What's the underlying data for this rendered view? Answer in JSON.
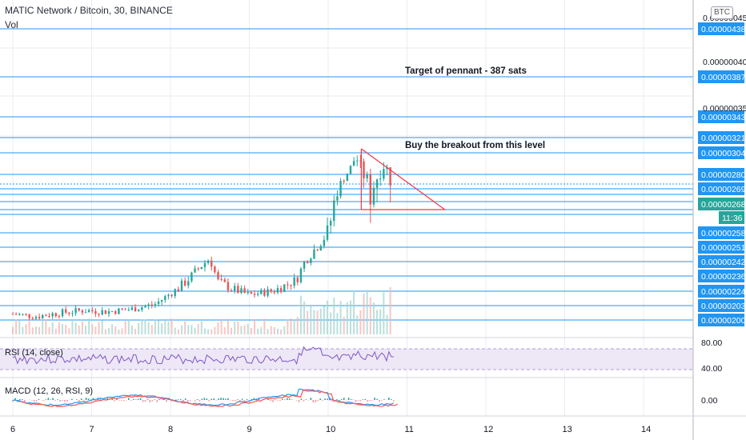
{
  "header": {
    "symbol_title": "MATIC Network / Bitcoin, 30, BINANCE",
    "volume_label": "Vol",
    "currency_badge": "BTC"
  },
  "colors": {
    "up": "#26a69a",
    "down": "#ef5350",
    "hline": "#2196f3",
    "pennant": "#f23645",
    "rsi_line": "#7e57c2",
    "rsi_band": "#ede7f6",
    "macd_line": "#2196f3",
    "signal_line": "#ff5252",
    "grid": "#e9ecf2"
  },
  "annotations": [
    {
      "text": "Target of pennant - 387 sats",
      "price": 3.87e-06
    },
    {
      "text": "Buy the breakout from this level",
      "price": 3.04e-06
    }
  ],
  "timer_label": "11:36",
  "chart_data": {
    "type": "candlestick",
    "title": "MATIC Network / Bitcoin, 30, BINANCE",
    "x_ticks": [
      "6",
      "7",
      "8",
      "9",
      "10",
      "11",
      "12",
      "13",
      "14"
    ],
    "price_axis_ticks": [
      "0.000000450",
      "0.000000400",
      "0.000000350"
    ],
    "horizontal_levels": [
      "0.00000438",
      "0.00000387",
      "0.00000343",
      "0.00000321",
      "0.00000304",
      "0.00000280",
      "0.00000269",
      "0.00000258",
      "0.00000251",
      "0.00000242",
      "0.00000236",
      "0.00000224",
      "0.00000203",
      "0.00000200"
    ],
    "current_price": "0.00000268",
    "series_close_path": [
      [
        6.0,
        205
      ],
      [
        6.3,
        203
      ],
      [
        6.6,
        206
      ],
      [
        6.9,
        208
      ],
      [
        7.2,
        207
      ],
      [
        7.5,
        209
      ],
      [
        7.8,
        213
      ],
      [
        8.0,
        222
      ],
      [
        8.2,
        230
      ],
      [
        8.4,
        240
      ],
      [
        8.5,
        244
      ],
      [
        8.6,
        230
      ],
      [
        8.8,
        225
      ],
      [
        9.0,
        221
      ],
      [
        9.3,
        224
      ],
      [
        9.6,
        231
      ],
      [
        9.7,
        242
      ],
      [
        9.85,
        250
      ],
      [
        10.0,
        258
      ],
      [
        10.1,
        268
      ],
      [
        10.25,
        282
      ],
      [
        10.35,
        300
      ],
      [
        10.45,
        280
      ],
      [
        10.55,
        268
      ],
      [
        10.65,
        282
      ],
      [
        10.72,
        292
      ],
      [
        10.8,
        274
      ]
    ],
    "indicators": [
      {
        "name": "RSI",
        "label": "RSI (14, close)",
        "ticks": [
          "80.00",
          "40.00"
        ]
      },
      {
        "name": "MACD",
        "label": "MACD (12, 26, RSI, 9)",
        "ticks": [
          "0.00"
        ]
      }
    ]
  }
}
